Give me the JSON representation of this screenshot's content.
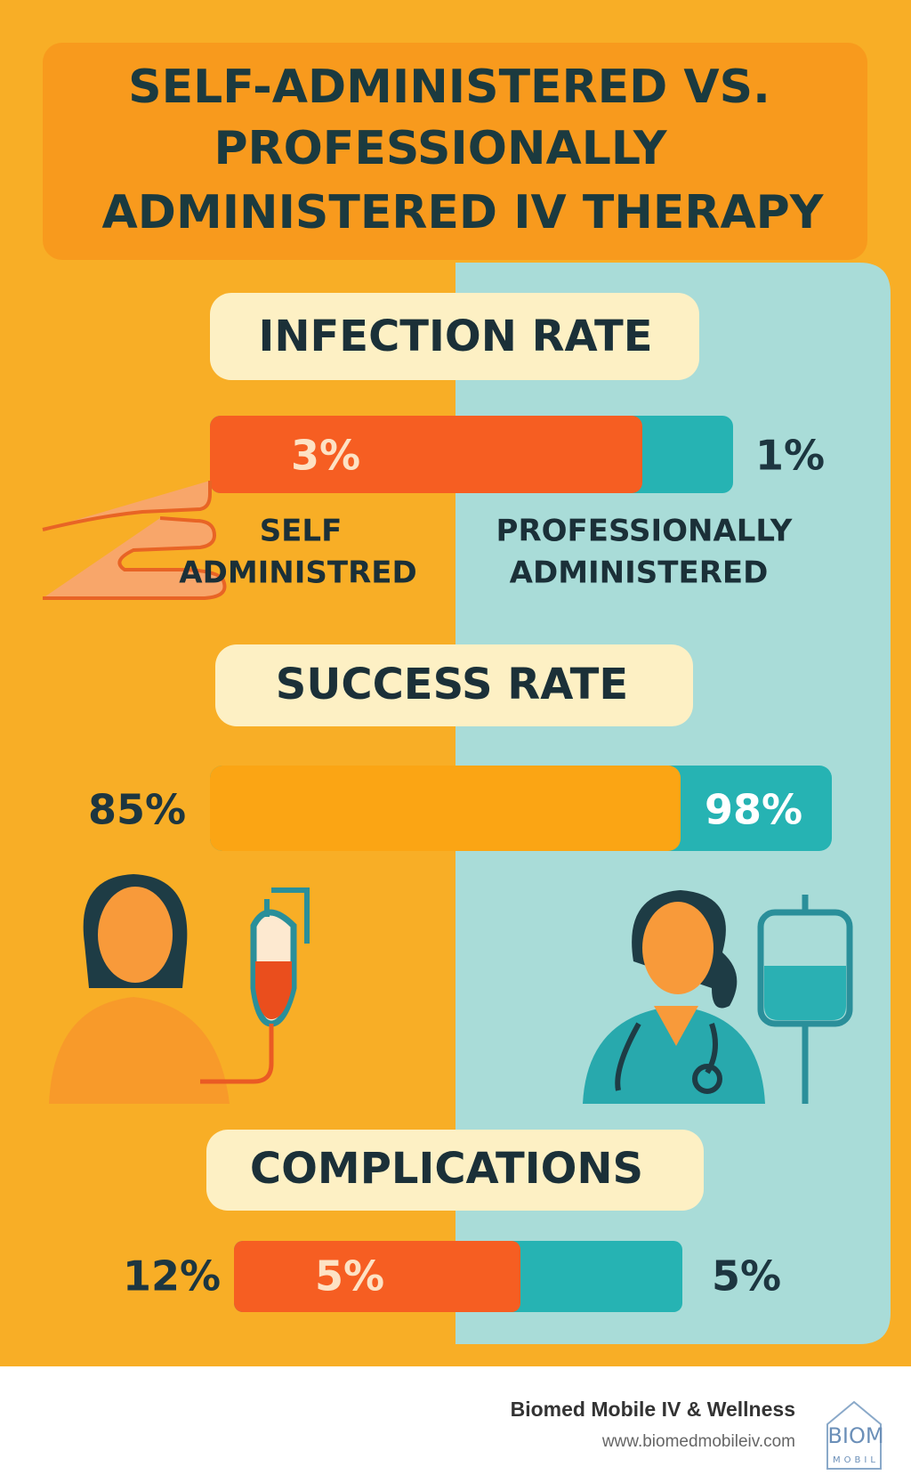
{
  "title": [
    "SELF-ADMINISTERED VS.",
    "PROFESSIONALLY",
    "ADMINISTERED IV THERAPY"
  ],
  "sections": [
    {
      "heading": "INFECTION RATE",
      "self_value": "3%",
      "professional_value": "1%"
    },
    {
      "heading": "SUCCESS RATE",
      "self_value": "85%",
      "professional_value": "98%"
    },
    {
      "heading": "COMPLICATIONS",
      "self_value": "12%",
      "bar_value": "5%",
      "professional_value": "5%"
    }
  ],
  "labels": {
    "self": [
      "SELF",
      "ADMINISTRED"
    ],
    "professional": [
      "PROFESSIONALLY",
      "ADMINISTERED"
    ]
  },
  "footer": {
    "brand": "Biomed Mobile IV & Wellness",
    "url": "www.biomedmobileiv.com",
    "logo": [
      "BIOM",
      "MOBIL"
    ]
  }
}
